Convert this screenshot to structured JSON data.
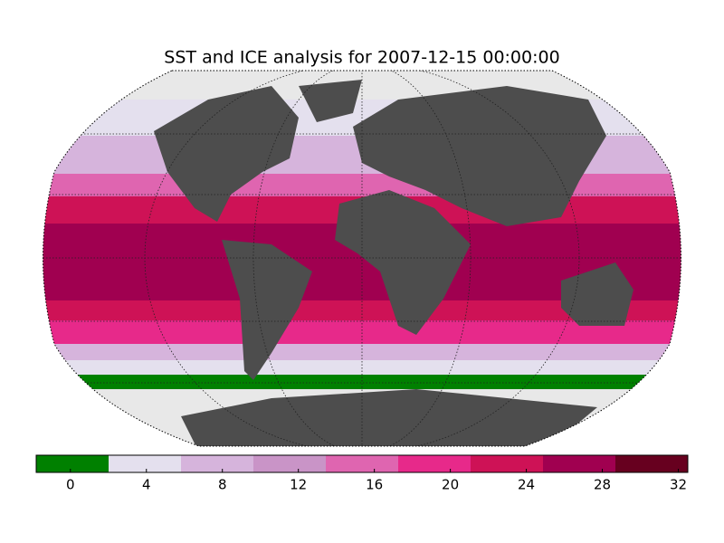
{
  "title": "SST and ICE analysis for 2007-12-15 00:00:00",
  "colorbar": {
    "lim": [
      -1.8,
      32.5
    ],
    "ticks": [
      0,
      4,
      8,
      12,
      16,
      20,
      24,
      28,
      32
    ],
    "colors": [
      "#008000",
      "#e4e0ee",
      "#d6b4dc",
      "#c994c7",
      "#df65b0",
      "#e7298a",
      "#ce1256",
      "#a00050",
      "#67001f"
    ]
  }
}
